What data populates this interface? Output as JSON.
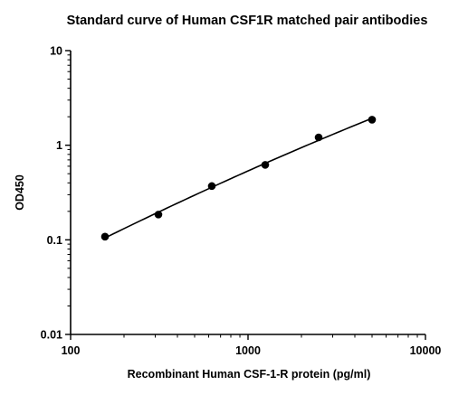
{
  "chart_data": {
    "type": "scatter",
    "title": "Standard curve of Human CSF1R matched pair antibodies",
    "xlabel": "Recombinant Human CSF-1-R protein (pg/ml)",
    "ylabel": "OD450",
    "x_scale": "log",
    "y_scale": "log",
    "xlim": [
      100,
      10000
    ],
    "ylim": [
      0.01,
      10
    ],
    "x_ticks": [
      {
        "value": 100,
        "label": "100"
      },
      {
        "value": 1000,
        "label": "1000"
      },
      {
        "value": 10000,
        "label": "10000"
      }
    ],
    "y_ticks": [
      {
        "value": 0.01,
        "label": "0.01"
      },
      {
        "value": 0.1,
        "label": "0.1"
      },
      {
        "value": 1,
        "label": "1"
      },
      {
        "value": 10,
        "label": "10"
      }
    ],
    "grid": false,
    "legend": "none",
    "fitted_curve": true,
    "series": [
      {
        "x": [
          156.25,
          312.5,
          625,
          1250,
          2500,
          5000
        ],
        "y": [
          0.108,
          0.185,
          0.37,
          0.62,
          1.21,
          1.86
        ]
      }
    ]
  }
}
